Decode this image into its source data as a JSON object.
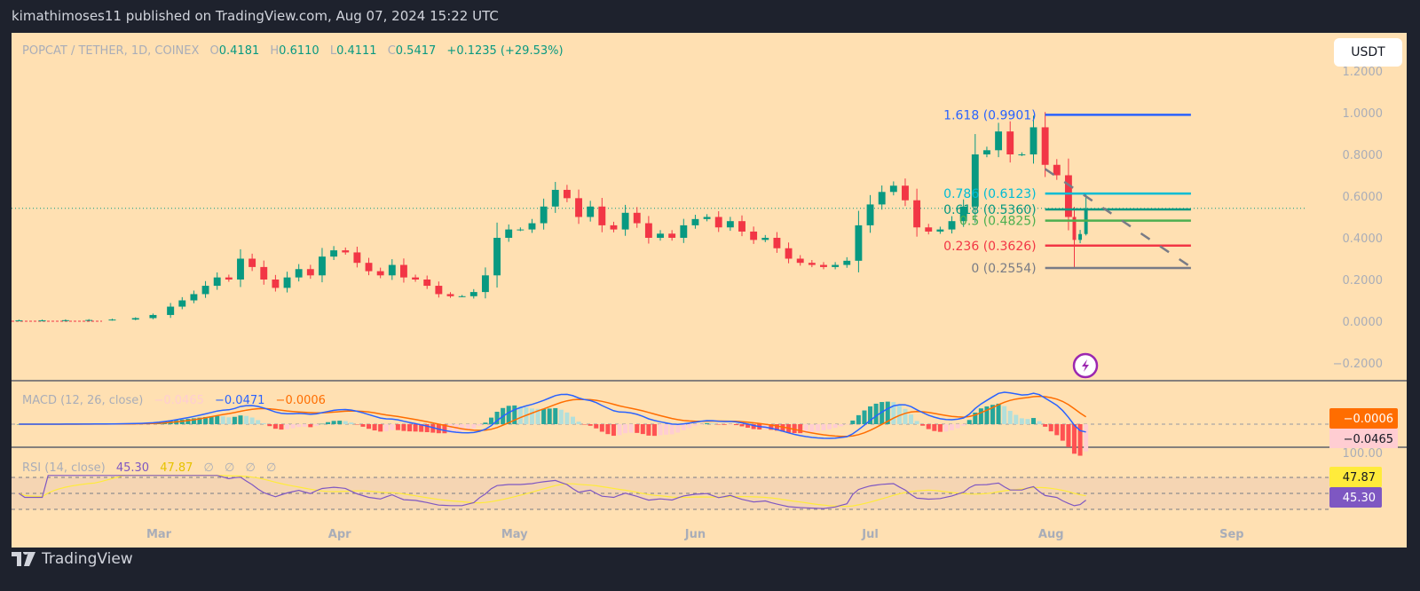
{
  "header": {
    "published": "kimathimoses11 published on TradingView.com, Aug 07, 2024 15:22 UTC"
  },
  "footer": {
    "brand": "TradingView"
  },
  "currency_button": "USDT",
  "colors": {
    "up": "#089981",
    "down": "#f23645",
    "background": "#ffe0b2",
    "macd": "#2962ff",
    "signal": "#ff6d00",
    "rsi": "#7e57c2",
    "rsi_ma": "#ffeb3b"
  },
  "legend": {
    "symbol": "POPCAT / TETHER, 1D, COINEX",
    "o_label": "O",
    "o": "0.4181",
    "h_label": "H",
    "h": "0.6110",
    "l_label": "L",
    "l": "0.4111",
    "c_label": "C",
    "c": "0.5417",
    "change": "+0.1235 (+29.53%)"
  },
  "macd_legend": {
    "title": "MACD (12, 26, close)",
    "hist": "−0.0465",
    "macd": "−0.0471",
    "signal": "−0.0006"
  },
  "rsi_legend": {
    "title": "RSI (14, close)",
    "rsi": "45.30",
    "ma": "47.87",
    "empty": [
      "∅",
      "∅",
      "∅",
      "∅"
    ]
  },
  "badges": {
    "macd_signal": "−0.0006",
    "macd_hist": "−0.0465",
    "rsi_ma": "47.87",
    "rsi": "45.30",
    "rsi_top": "100.00"
  },
  "chart_data": {
    "type": "candlestick",
    "price_axis": {
      "ticks": [
        "1.2000",
        "1.0000",
        "0.8000",
        "0.6000",
        "0.4000",
        "0.2000",
        "0.0000",
        "−0.2000"
      ],
      "values": [
        1.2,
        1.0,
        0.8,
        0.6,
        0.4,
        0.2,
        0.0,
        -0.2
      ],
      "range": [
        -0.25,
        1.3
      ]
    },
    "time_axis": {
      "ticks": [
        "Mar",
        "Apr",
        "May",
        "Jun",
        "Jul",
        "Aug",
        "Sep"
      ],
      "dates": [
        "2024-03-01",
        "2024-04-01",
        "2024-05-01",
        "2024-06-01",
        "2024-07-01",
        "2024-08-01",
        "2024-09-01"
      ]
    },
    "last_price": 0.5417,
    "last_candle": {
      "date": "2024-08-07",
      "open": 0.4181,
      "high": 0.611,
      "low": 0.4111,
      "close": 0.5417
    },
    "closes": [
      [
        "2024-02-06",
        0.004
      ],
      [
        "2024-02-10",
        0.004
      ],
      [
        "2024-02-14",
        0.005
      ],
      [
        "2024-02-18",
        0.006
      ],
      [
        "2024-02-22",
        0.008
      ],
      [
        "2024-02-26",
        0.015
      ],
      [
        "2024-02-29",
        0.03
      ],
      [
        "2024-03-03",
        0.07
      ],
      [
        "2024-03-05",
        0.1
      ],
      [
        "2024-03-07",
        0.13
      ],
      [
        "2024-03-09",
        0.17
      ],
      [
        "2024-03-11",
        0.21
      ],
      [
        "2024-03-13",
        0.2
      ],
      [
        "2024-03-15",
        0.3
      ],
      [
        "2024-03-17",
        0.26
      ],
      [
        "2024-03-19",
        0.2
      ],
      [
        "2024-03-21",
        0.16
      ],
      [
        "2024-03-23",
        0.21
      ],
      [
        "2024-03-25",
        0.25
      ],
      [
        "2024-03-27",
        0.22
      ],
      [
        "2024-03-29",
        0.31
      ],
      [
        "2024-03-31",
        0.34
      ],
      [
        "2024-04-02",
        0.33
      ],
      [
        "2024-04-04",
        0.28
      ],
      [
        "2024-04-06",
        0.24
      ],
      [
        "2024-04-08",
        0.22
      ],
      [
        "2024-04-10",
        0.27
      ],
      [
        "2024-04-12",
        0.21
      ],
      [
        "2024-04-14",
        0.2
      ],
      [
        "2024-04-16",
        0.17
      ],
      [
        "2024-04-18",
        0.13
      ],
      [
        "2024-04-20",
        0.12
      ],
      [
        "2024-04-22",
        0.12
      ],
      [
        "2024-04-24",
        0.14
      ],
      [
        "2024-04-26",
        0.22
      ],
      [
        "2024-04-28",
        0.4
      ],
      [
        "2024-04-30",
        0.44
      ],
      [
        "2024-05-02",
        0.44
      ],
      [
        "2024-05-04",
        0.47
      ],
      [
        "2024-05-06",
        0.55
      ],
      [
        "2024-05-08",
        0.63
      ],
      [
        "2024-05-10",
        0.59
      ],
      [
        "2024-05-12",
        0.5
      ],
      [
        "2024-05-14",
        0.55
      ],
      [
        "2024-05-16",
        0.46
      ],
      [
        "2024-05-18",
        0.44
      ],
      [
        "2024-05-20",
        0.52
      ],
      [
        "2024-05-22",
        0.47
      ],
      [
        "2024-05-24",
        0.4
      ],
      [
        "2024-05-26",
        0.42
      ],
      [
        "2024-05-28",
        0.4
      ],
      [
        "2024-05-30",
        0.46
      ],
      [
        "2024-06-01",
        0.49
      ],
      [
        "2024-06-03",
        0.5
      ],
      [
        "2024-06-05",
        0.45
      ],
      [
        "2024-06-07",
        0.48
      ],
      [
        "2024-06-09",
        0.43
      ],
      [
        "2024-06-11",
        0.39
      ],
      [
        "2024-06-13",
        0.4
      ],
      [
        "2024-06-15",
        0.35
      ],
      [
        "2024-06-17",
        0.3
      ],
      [
        "2024-06-19",
        0.28
      ],
      [
        "2024-06-21",
        0.27
      ],
      [
        "2024-06-23",
        0.26
      ],
      [
        "2024-06-25",
        0.27
      ],
      [
        "2024-06-27",
        0.29
      ],
      [
        "2024-06-29",
        0.46
      ],
      [
        "2024-07-01",
        0.56
      ],
      [
        "2024-07-03",
        0.62
      ],
      [
        "2024-07-05",
        0.65
      ],
      [
        "2024-07-07",
        0.58
      ],
      [
        "2024-07-09",
        0.45
      ],
      [
        "2024-07-11",
        0.43
      ],
      [
        "2024-07-13",
        0.44
      ],
      [
        "2024-07-15",
        0.48
      ],
      [
        "2024-07-17",
        0.55
      ],
      [
        "2024-07-19",
        0.8
      ],
      [
        "2024-07-21",
        0.82
      ],
      [
        "2024-07-23",
        0.91
      ],
      [
        "2024-07-25",
        0.8
      ],
      [
        "2024-07-27",
        0.8
      ],
      [
        "2024-07-29",
        0.93
      ],
      [
        "2024-07-31",
        0.75
      ],
      [
        "2024-08-02",
        0.7
      ],
      [
        "2024-08-04",
        0.5
      ],
      [
        "2024-08-05",
        0.39
      ],
      [
        "2024-08-06",
        0.4181
      ],
      [
        "2024-08-07",
        0.5417
      ]
    ],
    "fibonacci": {
      "start_date": "2024-07-31",
      "end_date": "2024-08-25",
      "levels": [
        {
          "ratio": "1.618",
          "price": 0.9901,
          "label": "1.618 (0.9901)",
          "color": "#2962ff"
        },
        {
          "ratio": "0.786",
          "price": 0.6123,
          "label": "0.786 (0.6123)",
          "color": "#00bcd4"
        },
        {
          "ratio": "0.618",
          "price": 0.536,
          "label": "0.618 (0.5360)",
          "color": "#089981"
        },
        {
          "ratio": "0.5",
          "price": 0.4825,
          "label": "0.5 (0.4825)",
          "color": "#4caf50"
        },
        {
          "ratio": "0.236",
          "price": 0.3626,
          "label": "0.236 (0.3626)",
          "color": "#f23645"
        },
        {
          "ratio": "0",
          "price": 0.2554,
          "label": "0 (0.2554)",
          "color": "#787b86"
        }
      ]
    },
    "trendline": {
      "from": [
        "2024-07-31",
        0.73
      ],
      "to": [
        "2024-08-25",
        0.26
      ],
      "style": "dashed",
      "color": "#787b86"
    },
    "rsi_bands": [
      70,
      50,
      30
    ]
  }
}
